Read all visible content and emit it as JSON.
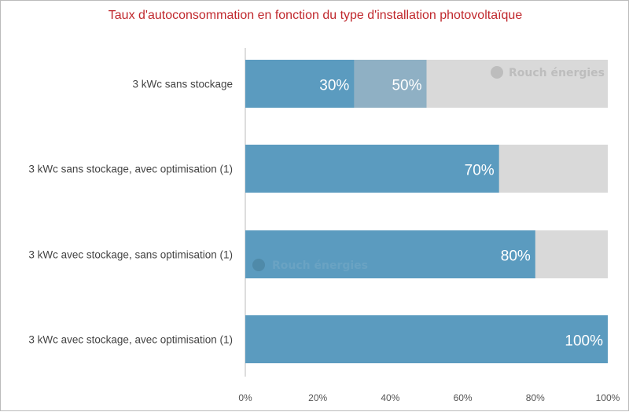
{
  "chart_data": {
    "type": "bar",
    "orientation": "horizontal",
    "title": "Taux d'autoconsommation en fonction du type d'installation photovoltaïque",
    "categories": [
      "3 kWc sans stockage",
      "3 kWc sans stockage, avec optimisation (1)",
      "3 kWc avec stockage, sans optimisation (1)",
      "3 kWc avec stockage, avec optimisation (1)"
    ],
    "series": [
      {
        "values": [
          30,
          70,
          80,
          100
        ],
        "labels": [
          "30%",
          "70%",
          "80%",
          "100%"
        ],
        "color": "#5b9bbf"
      },
      {
        "values": [
          50,
          null,
          null,
          null
        ],
        "labels": [
          "50%",
          null,
          null,
          null
        ],
        "color": "#8fb0c4"
      }
    ],
    "background_bar": {
      "value": 100,
      "color": "#d9d9d9"
    },
    "xlim": [
      0,
      100
    ],
    "xticks": [
      "0%",
      "20%",
      "40%",
      "60%",
      "80%",
      "100%"
    ],
    "xlabel": "",
    "ylabel": "",
    "grid": false,
    "title_color": "#c0282d"
  },
  "watermark": "Rouch énergies"
}
